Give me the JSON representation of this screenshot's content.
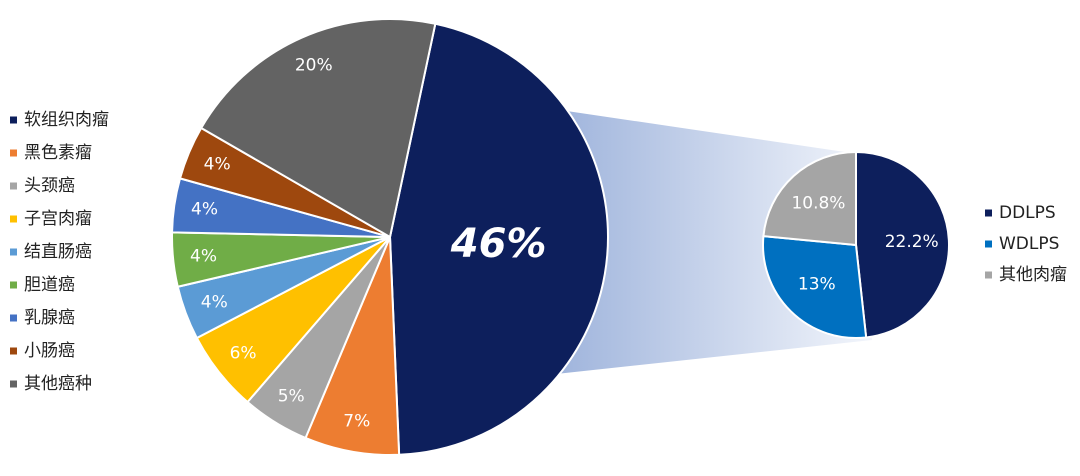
{
  "chart_data": [
    {
      "type": "pie",
      "categories": [
        "软组织肉瘤",
        "黑色素瘤",
        "头颈癌",
        "子宫肉瘤",
        "结直肠癌",
        "胆道癌",
        "乳腺癌",
        "小肠癌",
        "其他癌种"
      ],
      "values": [
        46,
        7,
        5,
        6,
        4,
        4,
        4,
        4,
        20
      ],
      "value_labels": [
        "46%",
        "7%",
        "5%",
        "6%",
        "4%",
        "4%",
        "4%",
        "4%",
        "20%"
      ],
      "colors": [
        "#0d1f5c",
        "#ed7d31",
        "#a5a5a5",
        "#ffc000",
        "#5b9bd5",
        "#70ad47",
        "#4472c4",
        "#9e480e",
        "#636363"
      ],
      "legend": "left"
    },
    {
      "type": "pie",
      "categories": [
        "DDLPS",
        "WDLPS",
        "其他肉瘤"
      ],
      "values": [
        22.2,
        13,
        10.8
      ],
      "value_labels": [
        "22.2%",
        "13%",
        "10.8%"
      ],
      "colors": [
        "#0d1f5c",
        "#0070c0",
        "#a5a5a5"
      ],
      "legend": "right"
    }
  ]
}
